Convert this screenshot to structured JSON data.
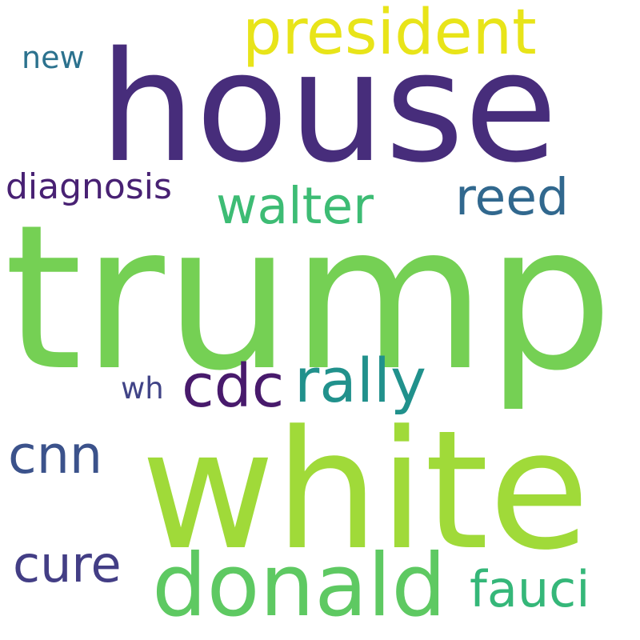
{
  "word_cloud": {
    "words": [
      {
        "text": "trump",
        "color": "#75d054"
      },
      {
        "text": "white",
        "color": "#a0da39"
      },
      {
        "text": "house",
        "color": "#472d7b"
      },
      {
        "text": "donald",
        "color": "#5ec962"
      },
      {
        "text": "president",
        "color": "#e8e419"
      },
      {
        "text": "rally",
        "color": "#21918c"
      },
      {
        "text": "walter",
        "color": "#3dbc74"
      },
      {
        "text": "reed",
        "color": "#31688e"
      },
      {
        "text": "cdc",
        "color": "#481a6c"
      },
      {
        "text": "cnn",
        "color": "#3b528b"
      },
      {
        "text": "cure",
        "color": "#433e85"
      },
      {
        "text": "fauci",
        "color": "#35b779"
      },
      {
        "text": "diagnosis",
        "color": "#482173"
      },
      {
        "text": "new",
        "color": "#2c728e"
      },
      {
        "text": "wh",
        "color": "#414487"
      }
    ]
  }
}
